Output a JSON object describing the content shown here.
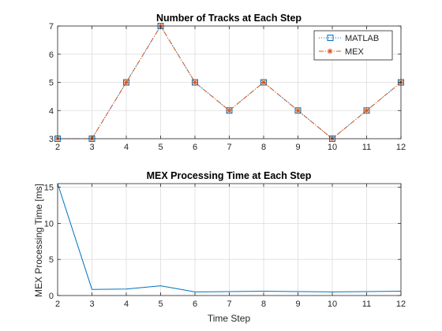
{
  "chart_data": [
    {
      "type": "line",
      "title": "Number of Tracks at Each Step",
      "xlabel": "",
      "ylabel": "",
      "x": [
        2,
        3,
        4,
        5,
        6,
        7,
        8,
        9,
        10,
        11,
        12
      ],
      "xlim": [
        2,
        12
      ],
      "ylim": [
        3,
        7
      ],
      "xticks": [
        2,
        3,
        4,
        5,
        6,
        7,
        8,
        9,
        10,
        11,
        12
      ],
      "yticks": [
        3,
        4,
        5,
        6,
        7
      ],
      "grid": true,
      "legend_position": "top-right",
      "series": [
        {
          "name": "MATLAB",
          "values": [
            3,
            3,
            5,
            7,
            5,
            4,
            5,
            4,
            3,
            4,
            5
          ],
          "color": "#0072BD",
          "line_style": "dotted",
          "marker": "square"
        },
        {
          "name": "MEX",
          "values": [
            3,
            3,
            5,
            7,
            5,
            4,
            5,
            4,
            3,
            4,
            5
          ],
          "color": "#D95319",
          "line_style": "dash-dot",
          "marker": "asterisk"
        }
      ]
    },
    {
      "type": "line",
      "title": "MEX Processing Time at Each Step",
      "xlabel": "Time Step",
      "ylabel": "MEX Processing Time [ms]",
      "x": [
        2,
        3,
        4,
        5,
        6,
        7,
        8,
        9,
        10,
        11,
        12
      ],
      "xlim": [
        2,
        12
      ],
      "ylim": [
        0,
        15.5
      ],
      "xticks": [
        2,
        3,
        4,
        5,
        6,
        7,
        8,
        9,
        10,
        11,
        12
      ],
      "yticks": [
        0,
        5,
        10,
        15
      ],
      "grid": true,
      "series": [
        {
          "values": [
            15.5,
            0.85,
            0.9,
            1.35,
            0.5,
            0.55,
            0.6,
            0.55,
            0.5,
            0.55,
            0.6
          ],
          "color": "#0072BD",
          "line_style": "solid"
        }
      ]
    }
  ]
}
